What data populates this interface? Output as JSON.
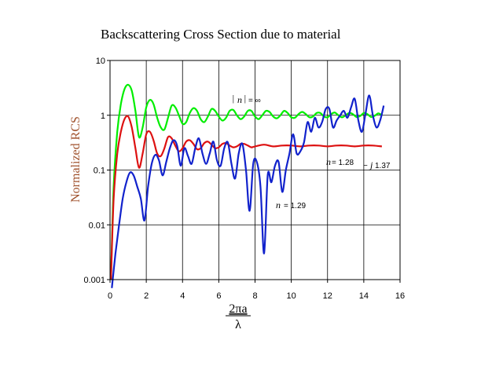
{
  "chart_data": {
    "type": "line",
    "title": "Backscattering Cross Section due to material",
    "ylabel": "Normalized RCS",
    "xlabel": {
      "numerator": "2πa",
      "denominator": "λ"
    },
    "xlim": [
      0,
      16
    ],
    "ylim": [
      0.001,
      10
    ],
    "yscale": "log",
    "grid": true,
    "xticks": [
      0,
      2,
      4,
      6,
      8,
      10,
      12,
      14,
      16
    ],
    "yticks": [
      {
        "value": 0.001,
        "label": "0.001"
      },
      {
        "value": 0.01,
        "label": "0.01"
      },
      {
        "value": 0.1,
        "label": "0.1"
      },
      {
        "value": 1,
        "label": "1"
      },
      {
        "value": 10,
        "label": "10"
      }
    ],
    "series": [
      {
        "color": "#00ee00",
        "x": [
          0.05,
          0.2,
          0.4,
          0.6,
          0.8,
          1.0,
          1.2,
          1.4,
          1.6,
          1.8,
          2.0,
          2.2,
          2.4,
          2.6,
          2.8,
          3.0,
          3.2,
          3.4,
          3.6,
          3.8,
          4.0,
          4.2,
          4.4,
          4.6,
          4.8,
          5.0,
          5.2,
          5.4,
          5.6,
          5.8,
          6.0,
          6.2,
          6.4,
          6.6,
          6.8,
          7.0,
          7.2,
          7.4,
          7.6,
          7.8,
          8.0,
          8.2,
          8.4,
          8.6,
          8.8,
          9.0,
          9.2,
          9.4,
          9.6,
          9.8,
          10.0,
          10.2,
          10.4,
          10.6,
          10.8,
          11.0,
          11.2,
          11.4,
          11.6,
          11.8,
          12.0,
          12.2,
          12.4,
          12.6,
          12.8,
          13.0,
          13.2,
          13.4,
          13.6,
          13.8,
          14.0,
          14.2,
          14.4,
          14.6,
          14.8,
          15.0
        ],
        "y": [
          0.001,
          0.05,
          0.5,
          1.6,
          3.0,
          3.6,
          2.8,
          1.2,
          0.4,
          0.6,
          1.4,
          1.9,
          1.6,
          0.9,
          0.6,
          0.55,
          0.9,
          1.5,
          1.4,
          1.0,
          0.7,
          0.75,
          1.1,
          1.35,
          1.2,
          0.85,
          0.75,
          0.95,
          1.3,
          1.2,
          0.95,
          0.8,
          0.9,
          1.2,
          1.25,
          1.0,
          0.85,
          0.95,
          1.2,
          1.2,
          0.95,
          0.85,
          1.0,
          1.2,
          1.15,
          0.95,
          0.88,
          1.0,
          1.2,
          1.1,
          0.92,
          0.9,
          1.05,
          1.15,
          1.05,
          0.92,
          0.95,
          1.1,
          1.1,
          0.95,
          0.92,
          1.05,
          1.12,
          1.0,
          0.92,
          1.0,
          1.1,
          1.05,
          0.93,
          0.97,
          1.1,
          1.05,
          0.93,
          0.98,
          1.08,
          1.0
        ]
      },
      {
        "color": "#dd1111",
        "x": [
          0.05,
          0.2,
          0.4,
          0.6,
          0.8,
          1.0,
          1.2,
          1.4,
          1.6,
          1.8,
          2.0,
          2.2,
          2.4,
          2.6,
          2.8,
          3.0,
          3.2,
          3.4,
          3.6,
          3.8,
          4.0,
          4.2,
          4.4,
          4.6,
          4.8,
          5.0,
          5.2,
          5.4,
          5.6,
          5.8,
          6.0,
          6.2,
          6.4,
          6.6,
          6.8,
          7.0,
          7.2,
          7.4,
          7.6,
          7.8,
          8.0,
          8.5,
          9.0,
          9.5,
          10.0,
          10.5,
          11.0,
          11.5,
          12.0,
          12.5,
          13.0,
          13.5,
          14.0,
          14.5,
          15.0
        ],
        "y": [
          0.001,
          0.03,
          0.2,
          0.5,
          0.85,
          0.95,
          0.6,
          0.25,
          0.11,
          0.2,
          0.45,
          0.5,
          0.35,
          0.2,
          0.18,
          0.25,
          0.4,
          0.38,
          0.28,
          0.22,
          0.25,
          0.33,
          0.35,
          0.3,
          0.24,
          0.25,
          0.31,
          0.33,
          0.29,
          0.25,
          0.26,
          0.3,
          0.31,
          0.28,
          0.26,
          0.27,
          0.3,
          0.3,
          0.28,
          0.26,
          0.27,
          0.29,
          0.27,
          0.28,
          0.28,
          0.27,
          0.28,
          0.28,
          0.27,
          0.28,
          0.28,
          0.27,
          0.28,
          0.28,
          0.27
        ]
      },
      {
        "color": "#1122cc",
        "x": [
          0.1,
          0.3,
          0.5,
          0.7,
          0.9,
          1.1,
          1.3,
          1.5,
          1.7,
          1.9,
          2.1,
          2.3,
          2.5,
          2.7,
          2.9,
          3.1,
          3.3,
          3.5,
          3.7,
          3.9,
          4.1,
          4.3,
          4.5,
          4.7,
          4.9,
          5.1,
          5.3,
          5.5,
          5.7,
          5.9,
          6.1,
          6.3,
          6.5,
          6.7,
          6.9,
          7.1,
          7.3,
          7.5,
          7.7,
          7.9,
          8.1,
          8.3,
          8.5,
          8.7,
          8.9,
          9.1,
          9.3,
          9.5,
          9.7,
          9.9,
          10.1,
          10.3,
          10.5,
          10.7,
          10.9,
          11.1,
          11.3,
          11.5,
          11.7,
          11.9,
          12.1,
          12.3,
          12.5,
          12.7,
          12.9,
          13.1,
          13.3,
          13.5,
          13.7,
          13.9,
          14.1,
          14.3,
          14.5,
          14.7,
          14.9,
          15.1
        ],
        "y": [
          0.0007,
          0.003,
          0.01,
          0.03,
          0.06,
          0.09,
          0.08,
          0.05,
          0.03,
          0.012,
          0.05,
          0.13,
          0.19,
          0.15,
          0.08,
          0.14,
          0.25,
          0.35,
          0.28,
          0.12,
          0.25,
          0.18,
          0.13,
          0.25,
          0.38,
          0.2,
          0.13,
          0.2,
          0.33,
          0.15,
          0.12,
          0.25,
          0.32,
          0.13,
          0.07,
          0.2,
          0.3,
          0.1,
          0.018,
          0.13,
          0.14,
          0.05,
          0.003,
          0.08,
          0.06,
          0.12,
          0.14,
          0.04,
          0.1,
          0.2,
          0.45,
          0.2,
          0.22,
          0.32,
          0.75,
          0.5,
          0.9,
          0.6,
          0.75,
          1.3,
          1.3,
          0.6,
          0.8,
          1.0,
          1.2,
          0.9,
          1.4,
          2.0,
          0.8,
          0.5,
          1.1,
          2.3,
          1.0,
          0.6,
          0.8,
          1.5
        ]
      }
    ],
    "annotations": {
      "perfect_conductor": {
        "bar_left": "|",
        "n": "n",
        "bar_right": "|",
        "eq": "= ∞"
      },
      "lossy": {
        "n": "n",
        "eq": "= 1.28",
        "minus": "− ",
        "j": "j",
        "imag": "1.37"
      },
      "lossless": {
        "n": "n",
        "eq": "= 1.29"
      }
    }
  }
}
